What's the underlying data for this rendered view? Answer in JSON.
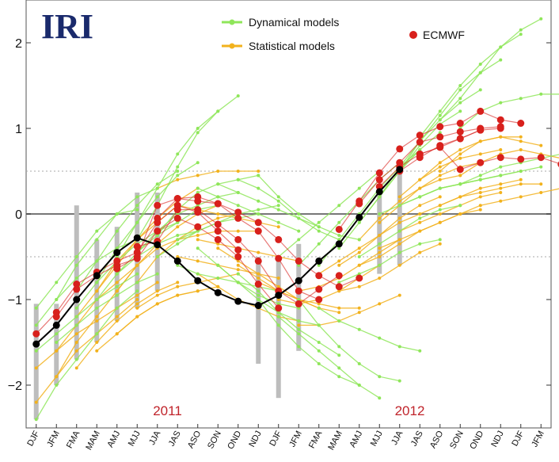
{
  "logo_text": "IRI",
  "legend": {
    "dynamical_label": "Dynamical models",
    "statistical_label": "Statistical models",
    "ecmwf_label": "ECMWF"
  },
  "colors": {
    "dynamical": "#8fe65a",
    "statistical": "#f2b21d",
    "ecmwf": "#d8201c",
    "observed": "#000000",
    "spread_bar": "#bdbdbd",
    "year_label": "#c0242b",
    "logo": "#1a2a6c"
  },
  "chart_data": {
    "type": "line",
    "title": "",
    "xlabel": "",
    "ylabel": "",
    "ylim": [
      -2.5,
      2.5
    ],
    "yticks": [
      "2",
      "1",
      "0",
      "−1",
      "−2"
    ],
    "ytick_values": [
      2,
      1,
      0,
      -1,
      -2
    ],
    "reference_lines": [
      0.5,
      -0.5
    ],
    "categories": [
      "DJF",
      "JFM",
      "FMA",
      "MAM",
      "AMJ",
      "MJJ",
      "JJA",
      "JAS",
      "ASO",
      "SON",
      "OND",
      "NDJ",
      "DJF",
      "JFM",
      "FMA",
      "MAM",
      "AMJ",
      "MJJ",
      "JJA",
      "JAS",
      "ASO",
      "SON",
      "OND",
      "NDJ",
      "DJF",
      "JFM"
    ],
    "year_labels": [
      {
        "text": "2011",
        "category_index": 6.5
      },
      {
        "text": "2012",
        "category_index": 18.5
      }
    ],
    "observed": {
      "name": "",
      "x_index": [
        0,
        1,
        2,
        3,
        4,
        5,
        6,
        7,
        8,
        9,
        10,
        11,
        12,
        13,
        14,
        15,
        16,
        17,
        18
      ],
      "values": [
        -1.52,
        -1.3,
        -1.0,
        -0.72,
        -0.45,
        -0.28,
        -0.36,
        -0.55,
        -0.78,
        -0.92,
        -1.02,
        -1.07,
        -0.95,
        -0.78,
        -0.55,
        -0.35,
        -0.04,
        0.26,
        0.52
      ]
    },
    "ecmwf": [
      {
        "name": "ECMWF",
        "start_index": 0,
        "values": [
          -1.4,
          -1.15,
          -0.82,
          -0.68,
          -0.55,
          -0.45,
          -0.1,
          0.1,
          0.02,
          -0.2,
          -0.42
        ]
      },
      {
        "name": "ECMWF",
        "start_index": 1,
        "values": [
          -1.2,
          -0.88,
          -0.72,
          -0.6,
          -0.52,
          -0.2,
          -0.05,
          -0.15,
          -0.3,
          -0.5,
          -0.82,
          -1.1
        ]
      },
      {
        "name": "ECMWF",
        "start_index": 4,
        "values": [
          -0.64,
          -0.5,
          0.1,
          0.18,
          0.2,
          0.12,
          -0.05,
          -0.2,
          -0.52,
          -0.9,
          -1.0
        ]
      },
      {
        "name": "ECMWF",
        "start_index": 5,
        "values": [
          -0.38,
          -0.32,
          0.05,
          0.05,
          -0.12,
          -0.3,
          -0.55,
          -0.9,
          -1.05,
          -0.88,
          -0.72
        ]
      },
      {
        "name": "ECMWF",
        "start_index": 6,
        "values": [
          -0.05,
          0.18,
          0.15,
          0.12,
          0.02,
          -0.1,
          -0.3,
          -0.55,
          -0.72,
          -0.85,
          -0.75
        ]
      },
      {
        "name": "ECMWF",
        "start_index": 15,
        "values": [
          -0.18,
          0.15,
          0.48,
          0.76,
          0.92,
          1.02,
          1.06,
          1.2,
          1.1,
          1.06
        ]
      },
      {
        "name": "ECMWF",
        "start_index": 16,
        "values": [
          0.12,
          0.4,
          0.6,
          0.84,
          0.9,
          0.96,
          1.0,
          1.02
        ]
      },
      {
        "name": "ECMWF",
        "start_index": 17,
        "values": [
          0.32,
          0.55,
          0.7,
          0.78,
          0.88,
          0.98
        ]
      },
      {
        "name": "ECMWF",
        "start_index": 18,
        "values": [
          0.5,
          0.66,
          0.8,
          0.88,
          0.98,
          1.0
        ]
      },
      {
        "name": "ECMWF",
        "start_index": 19,
        "values": [
          0.7,
          0.78,
          0.52,
          0.6,
          0.66,
          0.64,
          0.66,
          0.58
        ]
      }
    ],
    "dynamical_models": [
      {
        "start_index": 0,
        "values": [
          -1.1,
          -0.8,
          -0.5,
          -0.2,
          0.0,
          0.05
        ]
      },
      {
        "start_index": 0,
        "values": [
          -1.3,
          -1.0,
          -0.75,
          -0.55,
          -0.4,
          -0.3
        ]
      },
      {
        "start_index": 0,
        "values": [
          -1.6,
          -1.4,
          -1.2,
          -1.0,
          -0.85,
          -0.7
        ]
      },
      {
        "start_index": 0,
        "values": [
          -2.4,
          -2.0,
          -1.7,
          -1.4,
          -1.1,
          -0.9
        ]
      },
      {
        "start_index": 1,
        "values": [
          -1.0,
          -0.6,
          -0.3,
          0.0,
          0.2,
          0.3
        ]
      },
      {
        "start_index": 1,
        "values": [
          -1.5,
          -1.3,
          -1.1,
          -0.95,
          -0.8,
          -0.7
        ]
      },
      {
        "start_index": 2,
        "values": [
          -0.9,
          -0.55,
          -0.2,
          0.1,
          0.35,
          0.5
        ]
      },
      {
        "start_index": 2,
        "values": [
          -1.1,
          -0.8,
          -0.55,
          -0.35,
          -0.2,
          -0.1
        ]
      },
      {
        "start_index": 3,
        "values": [
          -0.8,
          -0.4,
          -0.1,
          0.2,
          0.45,
          0.6
        ]
      },
      {
        "start_index": 3,
        "values": [
          -1.0,
          -0.7,
          -0.5,
          -0.35,
          -0.25,
          -0.2
        ]
      },
      {
        "start_index": 4,
        "values": [
          -0.5,
          -0.1,
          0.3,
          0.7,
          1.0,
          1.2
        ]
      },
      {
        "start_index": 4,
        "values": [
          -0.7,
          -0.45,
          -0.25,
          -0.1,
          0.05,
          0.1
        ]
      },
      {
        "start_index": 5,
        "values": [
          -0.3,
          0.1,
          0.55,
          0.95,
          1.2,
          1.38
        ]
      },
      {
        "start_index": 5,
        "values": [
          -0.45,
          -0.2,
          0.0,
          0.1,
          0.2,
          0.25
        ]
      },
      {
        "start_index": 6,
        "values": [
          -0.25,
          0.05,
          0.25,
          0.35,
          0.4,
          0.45
        ]
      },
      {
        "start_index": 6,
        "values": [
          -0.5,
          -0.35,
          -0.2,
          -0.1,
          -0.05,
          0.0
        ]
      },
      {
        "start_index": 7,
        "values": [
          -0.3,
          -0.2,
          -0.1,
          0.0,
          0.05,
          0.1
        ]
      },
      {
        "start_index": 7,
        "values": [
          -0.6,
          -0.7,
          -0.75,
          -0.8,
          -0.85,
          -0.9
        ]
      },
      {
        "start_index": 8,
        "values": [
          0.3,
          0.2,
          0.1,
          0.0,
          -0.1,
          -0.2
        ]
      },
      {
        "start_index": 8,
        "values": [
          -0.4,
          -0.6,
          -0.8,
          -0.95,
          -1.05,
          -1.1
        ]
      },
      {
        "start_index": 9,
        "values": [
          0.35,
          0.25,
          0.15,
          0.05,
          -0.05,
          -0.15
        ]
      },
      {
        "start_index": 9,
        "values": [
          -0.6,
          -0.8,
          -1.0,
          -1.15,
          -1.25,
          -1.3
        ]
      },
      {
        "start_index": 10,
        "values": [
          0.4,
          0.3,
          0.15,
          -0.05,
          -0.2,
          -0.3
        ]
      },
      {
        "start_index": 10,
        "values": [
          -0.7,
          -0.9,
          -1.15,
          -1.35,
          -1.5,
          -1.65
        ]
      },
      {
        "start_index": 11,
        "values": [
          0.45,
          0.2,
          0.0,
          -0.15,
          -0.25,
          -0.3
        ]
      },
      {
        "start_index": 11,
        "values": [
          -1.0,
          -1.3,
          -1.55,
          -1.75,
          -1.9,
          -2.0
        ]
      },
      {
        "start_index": 12,
        "values": [
          -0.5,
          -0.3,
          -0.1,
          0.1,
          0.3,
          0.5
        ]
      },
      {
        "start_index": 12,
        "values": [
          -1.2,
          -1.4,
          -1.6,
          -1.8,
          -2.0,
          -2.15
        ]
      },
      {
        "start_index": 13,
        "values": [
          -0.6,
          -0.35,
          -0.1,
          0.15,
          0.4,
          0.6
        ]
      },
      {
        "start_index": 13,
        "values": [
          -1.0,
          -1.3,
          -1.55,
          -1.75,
          -1.9,
          -1.95
        ]
      },
      {
        "start_index": 14,
        "values": [
          -0.6,
          -0.3,
          0.0,
          0.3,
          0.55,
          0.75
        ]
      },
      {
        "start_index": 14,
        "values": [
          -1.1,
          -1.25,
          -1.35,
          -1.45,
          -1.55,
          -1.6
        ]
      },
      {
        "start_index": 15,
        "values": [
          -0.4,
          -0.1,
          0.2,
          0.5,
          0.75,
          0.95
        ]
      },
      {
        "start_index": 15,
        "values": [
          -0.8,
          -0.7,
          -0.6,
          -0.45,
          -0.35,
          -0.3
        ]
      },
      {
        "start_index": 16,
        "values": [
          -0.1,
          0.2,
          0.5,
          0.8,
          1.05,
          1.2
        ]
      },
      {
        "start_index": 16,
        "values": [
          -0.5,
          -0.35,
          -0.2,
          -0.05,
          0.05,
          0.1
        ]
      },
      {
        "start_index": 17,
        "values": [
          0.2,
          0.55,
          0.85,
          1.1,
          1.3,
          1.45
        ]
      },
      {
        "start_index": 17,
        "values": [
          0.0,
          0.1,
          0.2,
          0.3,
          0.35,
          0.4
        ]
      },
      {
        "start_index": 18,
        "values": [
          0.5,
          0.85,
          1.15,
          1.45,
          1.65,
          1.8
        ]
      },
      {
        "start_index": 18,
        "values": [
          0.1,
          0.2,
          0.3,
          0.35,
          0.4,
          0.45
        ]
      },
      {
        "start_index": 19,
        "values": [
          0.9,
          1.2,
          1.5,
          1.75,
          1.95,
          2.1
        ]
      },
      {
        "start_index": 19,
        "values": [
          0.2,
          0.3,
          0.35,
          0.4,
          0.45,
          0.5
        ]
      },
      {
        "start_index": 20,
        "values": [
          1.1,
          1.35,
          1.65,
          1.95,
          2.15,
          2.28
        ]
      },
      {
        "start_index": 20,
        "values": [
          0.3,
          0.35,
          0.4,
          0.45,
          0.5,
          0.55
        ]
      },
      {
        "start_index": 21,
        "values": [
          1.0,
          1.2,
          1.3,
          1.35,
          1.4,
          1.4
        ]
      },
      {
        "start_index": 21,
        "values": [
          0.35,
          0.45,
          0.55,
          0.6,
          0.65,
          0.7
        ]
      }
    ],
    "statistical_models": [
      {
        "start_index": 0,
        "values": [
          -1.8,
          -1.6,
          -1.3,
          -1.0,
          -0.8,
          -0.6
        ]
      },
      {
        "start_index": 0,
        "values": [
          -2.2,
          -1.9,
          -1.6,
          -1.4,
          -1.2,
          -1.0
        ]
      },
      {
        "start_index": 1,
        "values": [
          -1.9,
          -1.5,
          -1.2,
          -0.9,
          -0.6,
          -0.4
        ]
      },
      {
        "start_index": 1,
        "values": [
          -1.6,
          -1.4,
          -1.25,
          -1.1,
          -0.95,
          -0.8
        ]
      },
      {
        "start_index": 2,
        "values": [
          -1.8,
          -1.5,
          -1.25,
          -1.05,
          -0.9,
          -0.8
        ]
      },
      {
        "start_index": 2,
        "values": [
          -1.2,
          -0.9,
          -0.6,
          -0.3,
          -0.1,
          0.1
        ]
      },
      {
        "start_index": 3,
        "values": [
          -1.6,
          -1.4,
          -1.2,
          -1.05,
          -0.95,
          -0.9
        ]
      },
      {
        "start_index": 3,
        "values": [
          -0.9,
          -0.55,
          -0.3,
          -0.05,
          0.15,
          0.3
        ]
      },
      {
        "start_index": 4,
        "values": [
          -0.9,
          -0.6,
          -0.35,
          -0.15,
          0.0,
          0.1
        ]
      },
      {
        "start_index": 4,
        "values": [
          -1.4,
          -1.2,
          -1.05,
          -0.95,
          -0.9,
          -0.85
        ]
      },
      {
        "start_index": 5,
        "values": [
          -0.8,
          -0.5,
          -0.3,
          -0.15,
          -0.05,
          0.0
        ]
      },
      {
        "start_index": 5,
        "values": [
          -1.1,
          -0.95,
          -0.85,
          -0.8,
          -0.75,
          -0.7
        ]
      },
      {
        "start_index": 6,
        "values": [
          -0.4,
          -0.3,
          -0.25,
          -0.2,
          -0.2,
          -0.2
        ]
      },
      {
        "start_index": 6,
        "values": [
          0.3,
          0.4,
          0.45,
          0.5,
          0.5,
          0.5
        ]
      },
      {
        "start_index": 7,
        "values": [
          -0.5,
          -0.55,
          -0.6,
          -0.65,
          -0.7,
          -0.75
        ]
      },
      {
        "start_index": 7,
        "values": [
          0.1,
          0.05,
          0.0,
          -0.05,
          -0.1,
          -0.15
        ]
      },
      {
        "start_index": 8,
        "values": [
          -0.3,
          -0.35,
          -0.4,
          -0.45,
          -0.5,
          -0.55
        ]
      },
      {
        "start_index": 8,
        "values": [
          -0.7,
          -0.85,
          -1.0,
          -1.1,
          -1.2,
          -1.25
        ]
      },
      {
        "start_index": 9,
        "values": [
          -0.4,
          -0.55,
          -0.7,
          -0.85,
          -1.0,
          -1.1
        ]
      },
      {
        "start_index": 10,
        "values": [
          -0.6,
          -0.75,
          -0.9,
          -1.0,
          -1.1,
          -1.15
        ]
      },
      {
        "start_index": 11,
        "values": [
          -0.8,
          -0.9,
          -1.0,
          -1.05,
          -1.1,
          -1.1
        ]
      },
      {
        "start_index": 12,
        "values": [
          -1.0,
          -1.05,
          -1.0,
          -0.9,
          -0.75,
          -0.6
        ]
      },
      {
        "start_index": 13,
        "values": [
          -0.9,
          -0.85,
          -0.75,
          -0.6,
          -0.45,
          -0.3
        ]
      },
      {
        "start_index": 13,
        "values": [
          -1.3,
          -1.3,
          -1.25,
          -1.15,
          -1.05,
          -0.95
        ]
      },
      {
        "start_index": 14,
        "values": [
          -0.7,
          -0.55,
          -0.4,
          -0.25,
          -0.1,
          0.0
        ]
      },
      {
        "start_index": 15,
        "values": [
          -0.6,
          -0.45,
          -0.25,
          -0.05,
          0.1,
          0.2
        ]
      },
      {
        "start_index": 15,
        "values": [
          -0.9,
          -0.85,
          -0.75,
          -0.6,
          -0.45,
          -0.35
        ]
      },
      {
        "start_index": 16,
        "values": [
          -0.3,
          -0.05,
          0.15,
          0.3,
          0.4,
          0.45
        ]
      },
      {
        "start_index": 16,
        "values": [
          -0.6,
          -0.5,
          -0.35,
          -0.2,
          -0.1,
          0.0
        ]
      },
      {
        "start_index": 17,
        "values": [
          -0.1,
          0.1,
          0.3,
          0.45,
          0.55,
          0.6
        ]
      },
      {
        "start_index": 17,
        "values": [
          -0.4,
          -0.3,
          -0.2,
          -0.1,
          0.0,
          0.05
        ]
      },
      {
        "start_index": 18,
        "values": [
          0.2,
          0.4,
          0.55,
          0.65,
          0.7,
          0.75
        ]
      },
      {
        "start_index": 18,
        "values": [
          -0.2,
          -0.1,
          0.0,
          0.1,
          0.2,
          0.25
        ]
      },
      {
        "start_index": 19,
        "values": [
          0.4,
          0.6,
          0.75,
          0.85,
          0.9,
          0.9
        ]
      },
      {
        "start_index": 19,
        "values": [
          0.0,
          0.1,
          0.2,
          0.3,
          0.35,
          0.4
        ]
      },
      {
        "start_index": 20,
        "values": [
          0.5,
          0.7,
          0.85,
          0.9,
          0.85,
          0.8
        ]
      },
      {
        "start_index": 20,
        "values": [
          0.1,
          0.2,
          0.25,
          0.3,
          0.35,
          0.35
        ]
      },
      {
        "start_index": 21,
        "values": [
          0.45,
          0.6,
          0.7,
          0.75,
          0.7,
          0.65
        ]
      },
      {
        "start_index": 21,
        "values": [
          0.0,
          0.1,
          0.15,
          0.2,
          0.25,
          0.3
        ]
      }
    ],
    "spread_bars": [
      {
        "index": 0,
        "low": -2.4,
        "high": -1.05
      },
      {
        "index": 1,
        "low": -2.0,
        "high": -1.05
      },
      {
        "index": 2,
        "low": -1.7,
        "high": 0.1
      },
      {
        "index": 3,
        "low": -1.5,
        "high": -0.3
      },
      {
        "index": 4,
        "low": -1.25,
        "high": -0.15
      },
      {
        "index": 5,
        "low": -1.1,
        "high": 0.25
      },
      {
        "index": 6,
        "low": -0.9,
        "high": 0.25
      },
      {
        "index": 11,
        "low": -1.75,
        "high": -0.5
      },
      {
        "index": 12,
        "low": -2.15,
        "high": -0.55
      },
      {
        "index": 13,
        "low": -1.6,
        "high": -0.35
      },
      {
        "index": 17,
        "low": -0.7,
        "high": 0.3
      },
      {
        "index": 18,
        "low": -0.6,
        "high": 0.6
      }
    ]
  }
}
